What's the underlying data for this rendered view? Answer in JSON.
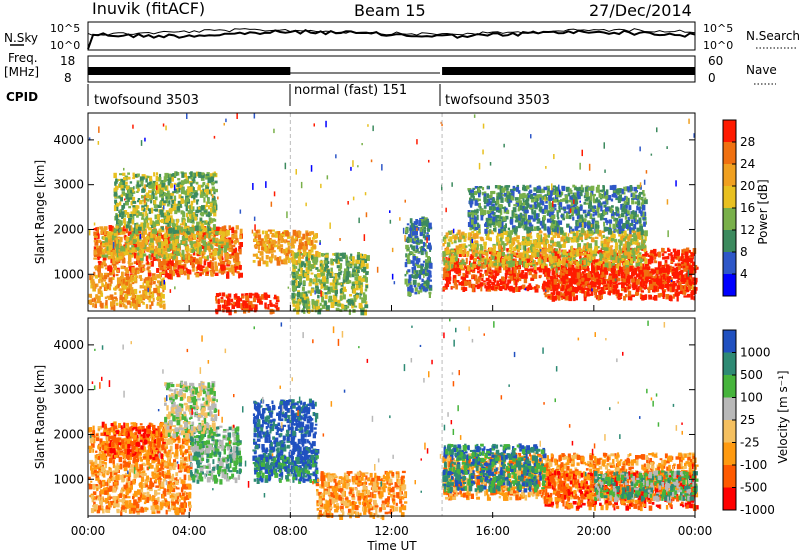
{
  "header": {
    "station": "Inuvik (fitACF)",
    "beam": "Beam 15",
    "date": "27/Dec/2014"
  },
  "noise_panel": {
    "left_label": "N.Sky",
    "right_label": "N.Search",
    "left_ticks": [
      "10^5",
      "10^0"
    ],
    "right_ticks": [
      "10^5",
      "10^0"
    ]
  },
  "freq_panel": {
    "left_label": "Freq.",
    "left_unit": "[MHz]",
    "right_label": "Nave",
    "left_ticks": [
      "18",
      "8"
    ],
    "right_ticks": [
      "60",
      "0"
    ]
  },
  "cpid": {
    "label": "CPID",
    "segments": [
      {
        "name": "twofsound 3503",
        "start": 0,
        "end": 8
      },
      {
        "name": "normal (fast) 151",
        "start": 8,
        "end": 14
      },
      {
        "name": "twofsound 3503",
        "start": 14,
        "end": 24
      }
    ]
  },
  "x_axis": {
    "title": "Time UT",
    "ticks": [
      "00:00",
      "04:00",
      "08:00",
      "12:00",
      "16:00",
      "20:00",
      "00:00"
    ]
  },
  "colors": {
    "power": [
      "#0000ff",
      "#2e57c8",
      "#3c8a5e",
      "#79b04a",
      "#e8c020",
      "#f0a020",
      "#f07010",
      "#ff1a00"
    ],
    "velocity": [
      "#ff0000",
      "#ff5a00",
      "#ff9a10",
      "#f5c060",
      "#b8b8b8",
      "#46b43c",
      "#2e8a74",
      "#2050c0"
    ]
  },
  "chart_data": [
    {
      "type": "heatmap",
      "name": "power",
      "ylabel": "Slant Range [km]",
      "yticks": [
        "4000",
        "3000",
        "2000",
        "1000"
      ],
      "ylim": [
        180,
        4600
      ],
      "xlim": [
        0,
        24
      ],
      "colorbar": {
        "title": "Power [dB]",
        "ticks": [
          "28",
          "24",
          "20",
          "16",
          "12",
          "8",
          "4"
        ]
      },
      "regions": [
        {
          "t0": 0.2,
          "t1": 6.0,
          "r0": 1000,
          "r1": 2100,
          "level": 6
        },
        {
          "t0": 0.5,
          "t1": 5.5,
          "r0": 1400,
          "r1": 2000,
          "level": 4
        },
        {
          "t0": 0.0,
          "t1": 3.0,
          "r0": 300,
          "r1": 1000,
          "level": 5
        },
        {
          "t0": 1.0,
          "t1": 5.0,
          "r0": 2000,
          "r1": 3300,
          "level": 3
        },
        {
          "t0": 5.0,
          "t1": 7.5,
          "r0": 200,
          "r1": 600,
          "level": 7
        },
        {
          "t0": 6.5,
          "t1": 9.0,
          "r0": 1300,
          "r1": 2000,
          "level": 5
        },
        {
          "t0": 8.0,
          "t1": 11.0,
          "r0": 200,
          "r1": 1500,
          "level": 3
        },
        {
          "t0": 12.5,
          "t1": 13.5,
          "r0": 600,
          "r1": 2300,
          "level": 2
        },
        {
          "t0": 14.0,
          "t1": 24.0,
          "r0": 700,
          "r1": 1600,
          "level": 7
        },
        {
          "t0": 14.0,
          "t1": 22.0,
          "r0": 1200,
          "r1": 2000,
          "level": 4
        },
        {
          "t0": 18.0,
          "t1": 24.0,
          "r0": 500,
          "r1": 1200,
          "level": 7
        },
        {
          "t0": 15.0,
          "t1": 22.0,
          "r0": 2000,
          "r1": 3000,
          "level": 2
        }
      ]
    },
    {
      "type": "heatmap",
      "name": "velocity",
      "ylabel": "Slant Range [km]",
      "yticks": [
        "4000",
        "3000",
        "2000",
        "1000"
      ],
      "ylim": [
        180,
        4600
      ],
      "xlim": [
        0,
        24
      ],
      "colorbar": {
        "title": "Velocity [m s⁻¹]",
        "ticks": [
          "1000",
          "500",
          "100",
          "25",
          "-25",
          "-100",
          "-500",
          "-1000"
        ]
      },
      "regions": [
        {
          "t0": 0.0,
          "t1": 4.0,
          "r0": 300,
          "r1": 2200,
          "level": 2
        },
        {
          "t0": 0.5,
          "t1": 3.0,
          "r0": 1500,
          "r1": 2300,
          "level": 1
        },
        {
          "t0": 4.0,
          "t1": 6.0,
          "r0": 1000,
          "r1": 2200,
          "level": 5
        },
        {
          "t0": 3.0,
          "t1": 5.0,
          "r0": 2000,
          "r1": 3200,
          "level": 4
        },
        {
          "t0": 6.5,
          "t1": 9.0,
          "r0": 1200,
          "r1": 2800,
          "level": 7
        },
        {
          "t0": 6.5,
          "t1": 9.0,
          "r0": 1000,
          "r1": 1600,
          "level": 6
        },
        {
          "t0": 9.0,
          "t1": 12.5,
          "r0": 200,
          "r1": 1200,
          "level": 2
        },
        {
          "t0": 14.0,
          "t1": 24.0,
          "r0": 600,
          "r1": 1600,
          "level": 2
        },
        {
          "t0": 14.0,
          "t1": 18.0,
          "r0": 800,
          "r1": 1800,
          "level": 6
        },
        {
          "t0": 18.0,
          "t1": 24.0,
          "r0": 400,
          "r1": 1200,
          "level": 1
        },
        {
          "t0": 20.0,
          "t1": 24.0,
          "r0": 600,
          "r1": 1200,
          "level": 5
        }
      ]
    }
  ]
}
